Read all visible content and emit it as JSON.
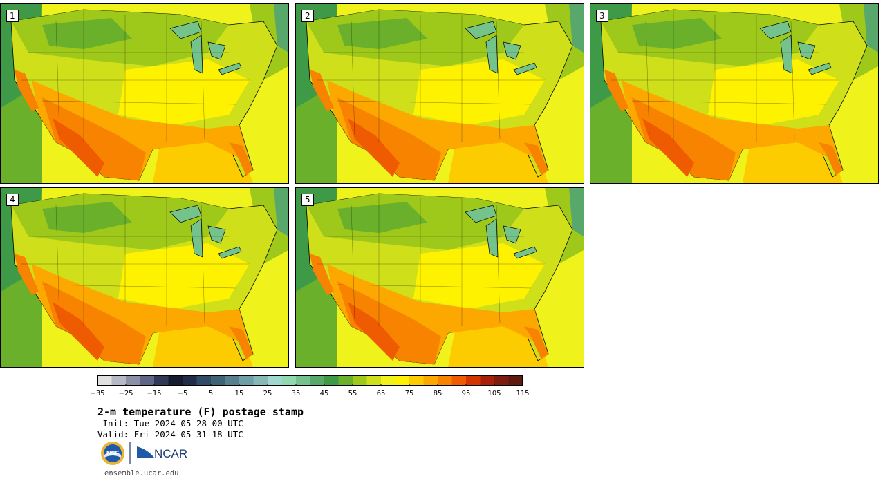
{
  "panels": [
    {
      "label": "1"
    },
    {
      "label": "2"
    },
    {
      "label": "3"
    },
    {
      "label": "4"
    },
    {
      "label": "5"
    }
  ],
  "colorbar": {
    "colors": [
      "#e0e0e0",
      "#b5b8c5",
      "#8a90a8",
      "#5d6685",
      "#303a57",
      "#151c30",
      "#1f2d47",
      "#2f4b65",
      "#3e6377",
      "#577f8d",
      "#6f9ea6",
      "#87b7b7",
      "#a0d8cf",
      "#8fd8b0",
      "#74c38d",
      "#57a86a",
      "#3f9a48",
      "#6bb02b",
      "#9fc91a",
      "#cfe01a",
      "#f0f21b",
      "#fff200",
      "#fdcc00",
      "#fca800",
      "#f78300",
      "#ee5b00",
      "#d43500",
      "#a91f0c",
      "#7d1d10",
      "#5e1a0e"
    ],
    "ticks": [
      "−35",
      "−25",
      "−15",
      "−5",
      "5",
      "15",
      "25",
      "35",
      "45",
      "55",
      "65",
      "75",
      "85",
      "95",
      "105",
      "115"
    ]
  },
  "title": "2-m temperature (F) postage stamp",
  "init_line": " Init: Tue 2024-05-28 00 UTC",
  "valid_line": "Valid: Fri 2024-05-31 18 UTC",
  "logos": {
    "nsf": "NSF",
    "ncar": "NCAR"
  },
  "url": "ensemble.ucar.edu"
}
